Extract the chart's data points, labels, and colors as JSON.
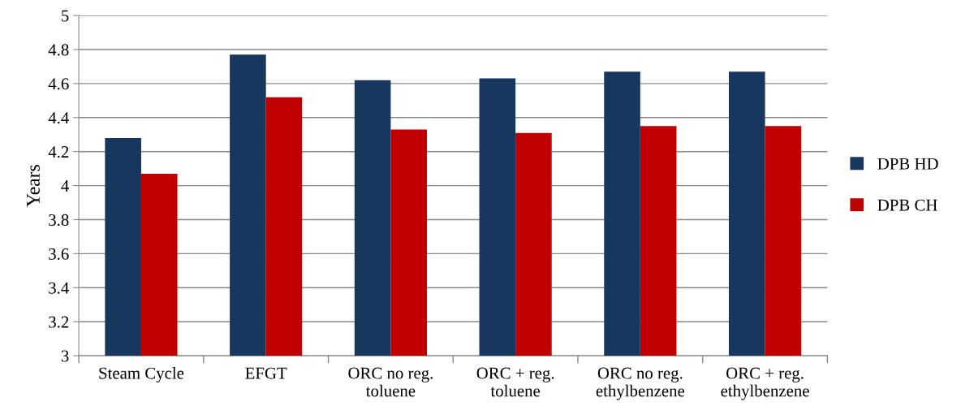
{
  "chart_data": {
    "type": "bar",
    "ylabel": "Years",
    "categories": [
      "Steam Cycle",
      "EFGT",
      "ORC no reg.\ntoluene",
      "ORC + reg.\ntoluene",
      "ORC no reg.\nethylbenzene",
      "ORC + reg.\nethylbenzene"
    ],
    "series": [
      {
        "name": "DPB HD",
        "color": "#17375e",
        "values": [
          4.28,
          4.77,
          4.62,
          4.63,
          4.67,
          4.67
        ]
      },
      {
        "name": "DPB CH",
        "color": "#c00000",
        "values": [
          4.07,
          4.52,
          4.33,
          4.31,
          4.35,
          4.35
        ]
      }
    ],
    "ylim": [
      3,
      5
    ],
    "yticks": [
      3,
      3.2,
      3.4,
      3.6,
      3.8,
      4,
      4.2,
      4.4,
      4.6,
      4.8,
      5
    ],
    "grid": "y",
    "legend": "right"
  }
}
